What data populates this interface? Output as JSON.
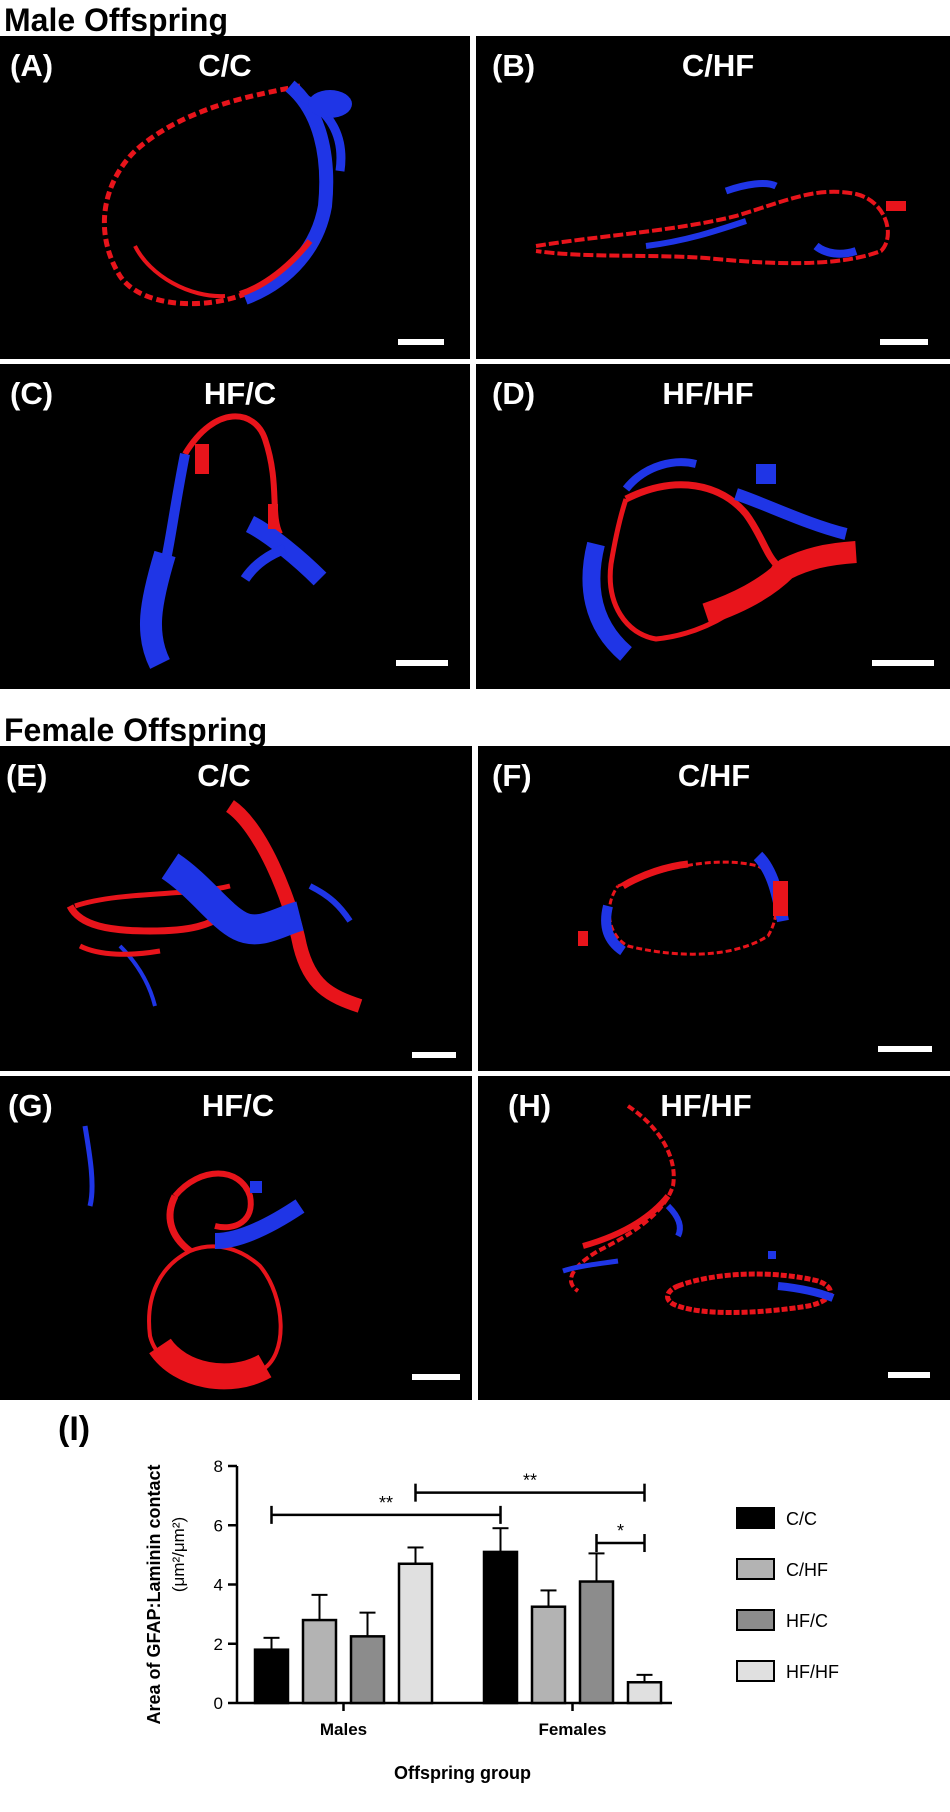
{
  "sections": {
    "male_title": "Male Offspring",
    "female_title": "Female Offspring"
  },
  "panels": [
    {
      "letter": "(A)",
      "group": "C/C"
    },
    {
      "letter": "(B)",
      "group": "C/HF"
    },
    {
      "letter": "(C)",
      "group": "HF/C"
    },
    {
      "letter": "(D)",
      "group": "HF/HF"
    },
    {
      "letter": "(E)",
      "group": "C/C"
    },
    {
      "letter": "(F)",
      "group": "C/HF"
    },
    {
      "letter": "(G)",
      "group": "HF/C"
    },
    {
      "letter": "(H)",
      "group": "HF/HF"
    }
  ],
  "colors": {
    "laminin": "#e8141b",
    "gfap": "#1f35e6",
    "background": "#000000",
    "separator": "#ffffff"
  },
  "chart_letter": "(I)",
  "chart_data": {
    "type": "bar",
    "categories": [
      "Males",
      "Females"
    ],
    "series": [
      {
        "name": "C/C",
        "values": [
          1.8,
          5.1
        ],
        "errors": [
          0.4,
          0.8
        ],
        "color": "#000000"
      },
      {
        "name": "C/HF",
        "values": [
          2.8,
          3.25
        ],
        "errors": [
          0.85,
          0.55
        ],
        "color": "#b3b3b3"
      },
      {
        "name": "HF/C",
        "values": [
          2.25,
          4.1
        ],
        "errors": [
          0.8,
          0.95
        ],
        "color": "#8c8c8c"
      },
      {
        "name": "HF/HF",
        "values": [
          4.7,
          0.7
        ],
        "errors": [
          0.55,
          0.25
        ],
        "color": "#e0e0e0"
      }
    ],
    "xlabel": "Offspring group",
    "ylabel": "Area of GFAP:Laminin contact",
    "ylabel_units": "(μm²/μm²)",
    "ylim": [
      0,
      8
    ],
    "yticks": [
      0,
      2,
      4,
      6,
      8
    ],
    "legend_position": "right",
    "significance": [
      {
        "label": "**"
      },
      {
        "label": "**"
      },
      {
        "label": "*"
      }
    ]
  }
}
